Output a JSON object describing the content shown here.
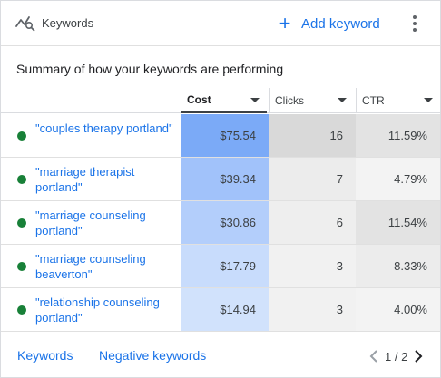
{
  "header": {
    "title": "Keywords",
    "add_label": "Add keyword"
  },
  "summary": "Summary of how your keywords are performing",
  "columns": {
    "cost": "Cost",
    "clicks": "Clicks",
    "ctr": "CTR"
  },
  "rows": [
    {
      "keyword": "\"couples therapy portland\"",
      "cost": "$75.54",
      "clicks": "16",
      "ctr": "11.59%",
      "status": "enabled"
    },
    {
      "keyword": "\"marriage therapist portland\"",
      "cost": "$39.34",
      "clicks": "7",
      "ctr": "4.79%",
      "status": "enabled"
    },
    {
      "keyword": "\"marriage counseling portland\"",
      "cost": "$30.86",
      "clicks": "6",
      "ctr": "11.54%",
      "status": "enabled"
    },
    {
      "keyword": "\"marriage counseling beaverton\"",
      "cost": "$17.79",
      "clicks": "3",
      "ctr": "8.33%",
      "status": "enabled"
    },
    {
      "keyword": "\"relationship counseling portland\"",
      "cost": "$14.94",
      "clicks": "3",
      "ctr": "4.00%",
      "status": "enabled"
    }
  ],
  "colors": {
    "cost_cells": [
      "#7baaf7",
      "#a1c2fa",
      "#b3cefb",
      "#c8dcfc",
      "#d1e2fc"
    ],
    "clicks_cells": [
      "#d9d9d9",
      "#ececec",
      "#eeeeee",
      "#f1f1f1",
      "#f1f1f1"
    ],
    "ctr_cells": [
      "#e3e3e3",
      "#f3f3f3",
      "#e3e3e3",
      "#ececec",
      "#f3f3f3"
    ],
    "status_enabled": "#188038",
    "link": "#1a73e8"
  },
  "footer": {
    "keywords_link": "Keywords",
    "negative_link": "Negative keywords",
    "page_text": "1 / 2"
  },
  "icons": {
    "header": "keywords-icon",
    "add": "plus-icon",
    "more": "more-vert-icon",
    "prev": "chevron-left-icon",
    "next": "chevron-right-icon"
  }
}
